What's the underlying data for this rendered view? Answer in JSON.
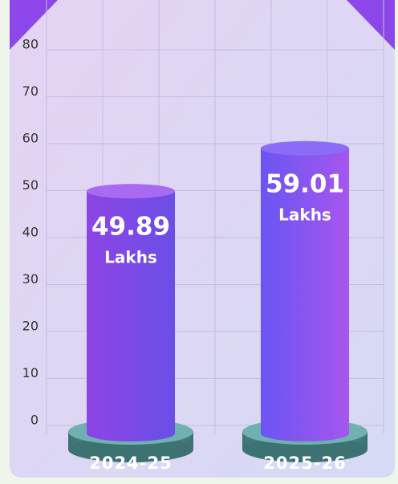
{
  "chart_data": {
    "type": "bar",
    "categories": [
      "2024-25",
      "2025-26"
    ],
    "values": [
      49.89,
      59.01
    ],
    "value_unit": "Lakhs",
    "colors": [
      "#8e44e6",
      "#6a55f2"
    ],
    "ylim": [
      0,
      80
    ],
    "yticks": [
      0,
      10,
      20,
      30,
      40,
      50,
      60,
      70,
      80
    ],
    "grid": true
  }
}
